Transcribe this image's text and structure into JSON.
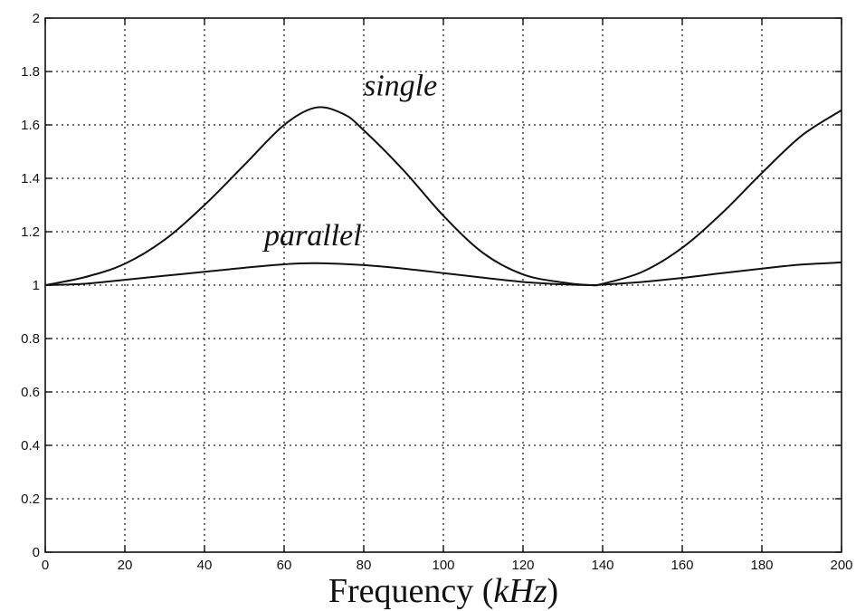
{
  "chart_data": {
    "type": "line",
    "title": "",
    "xlabel": "Frequency",
    "xlabel_unit": "kHz",
    "ylabel": "",
    "xlim": [
      0,
      200
    ],
    "ylim": [
      0,
      2
    ],
    "x_ticks": [
      0,
      20,
      40,
      60,
      80,
      100,
      120,
      140,
      160,
      180,
      200
    ],
    "y_ticks": [
      0,
      0.2,
      0.4,
      0.6,
      0.8,
      1,
      1.2,
      1.4,
      1.6,
      1.8,
      2
    ],
    "x_tick_labels": [
      "0",
      "20",
      "40",
      "60",
      "80",
      "100",
      "120",
      "140",
      "160",
      "180",
      "200"
    ],
    "y_tick_labels": [
      "0",
      "0.2",
      "0.4",
      "0.6",
      "0.8",
      "1",
      "1.2",
      "1.4",
      "1.6",
      "1.8",
      "2"
    ],
    "grid": true,
    "series": [
      {
        "name": "single",
        "x": [
          0,
          10,
          20,
          30,
          40,
          50,
          60,
          68,
          75,
          80,
          90,
          100,
          110,
          120,
          130,
          137,
          140,
          150,
          160,
          170,
          180,
          190,
          200
        ],
        "y": [
          1.0,
          1.03,
          1.08,
          1.17,
          1.3,
          1.45,
          1.6,
          1.665,
          1.64,
          1.58,
          1.43,
          1.26,
          1.12,
          1.04,
          1.01,
          1.0,
          1.005,
          1.05,
          1.14,
          1.27,
          1.42,
          1.56,
          1.655
        ]
      },
      {
        "name": "parallel",
        "x": [
          0,
          10,
          20,
          30,
          40,
          50,
          60,
          68,
          80,
          90,
          100,
          110,
          120,
          130,
          137,
          140,
          150,
          160,
          170,
          180,
          190,
          200
        ],
        "y": [
          1.0,
          1.005,
          1.02,
          1.035,
          1.05,
          1.065,
          1.078,
          1.082,
          1.075,
          1.062,
          1.045,
          1.028,
          1.012,
          1.003,
          1.0,
          1.002,
          1.012,
          1.027,
          1.045,
          1.062,
          1.077,
          1.085
        ]
      }
    ],
    "annotations": [
      {
        "text": "single",
        "x": 80,
        "y": 1.71
      },
      {
        "text": "parallel",
        "x": 55,
        "y": 1.15
      }
    ]
  }
}
